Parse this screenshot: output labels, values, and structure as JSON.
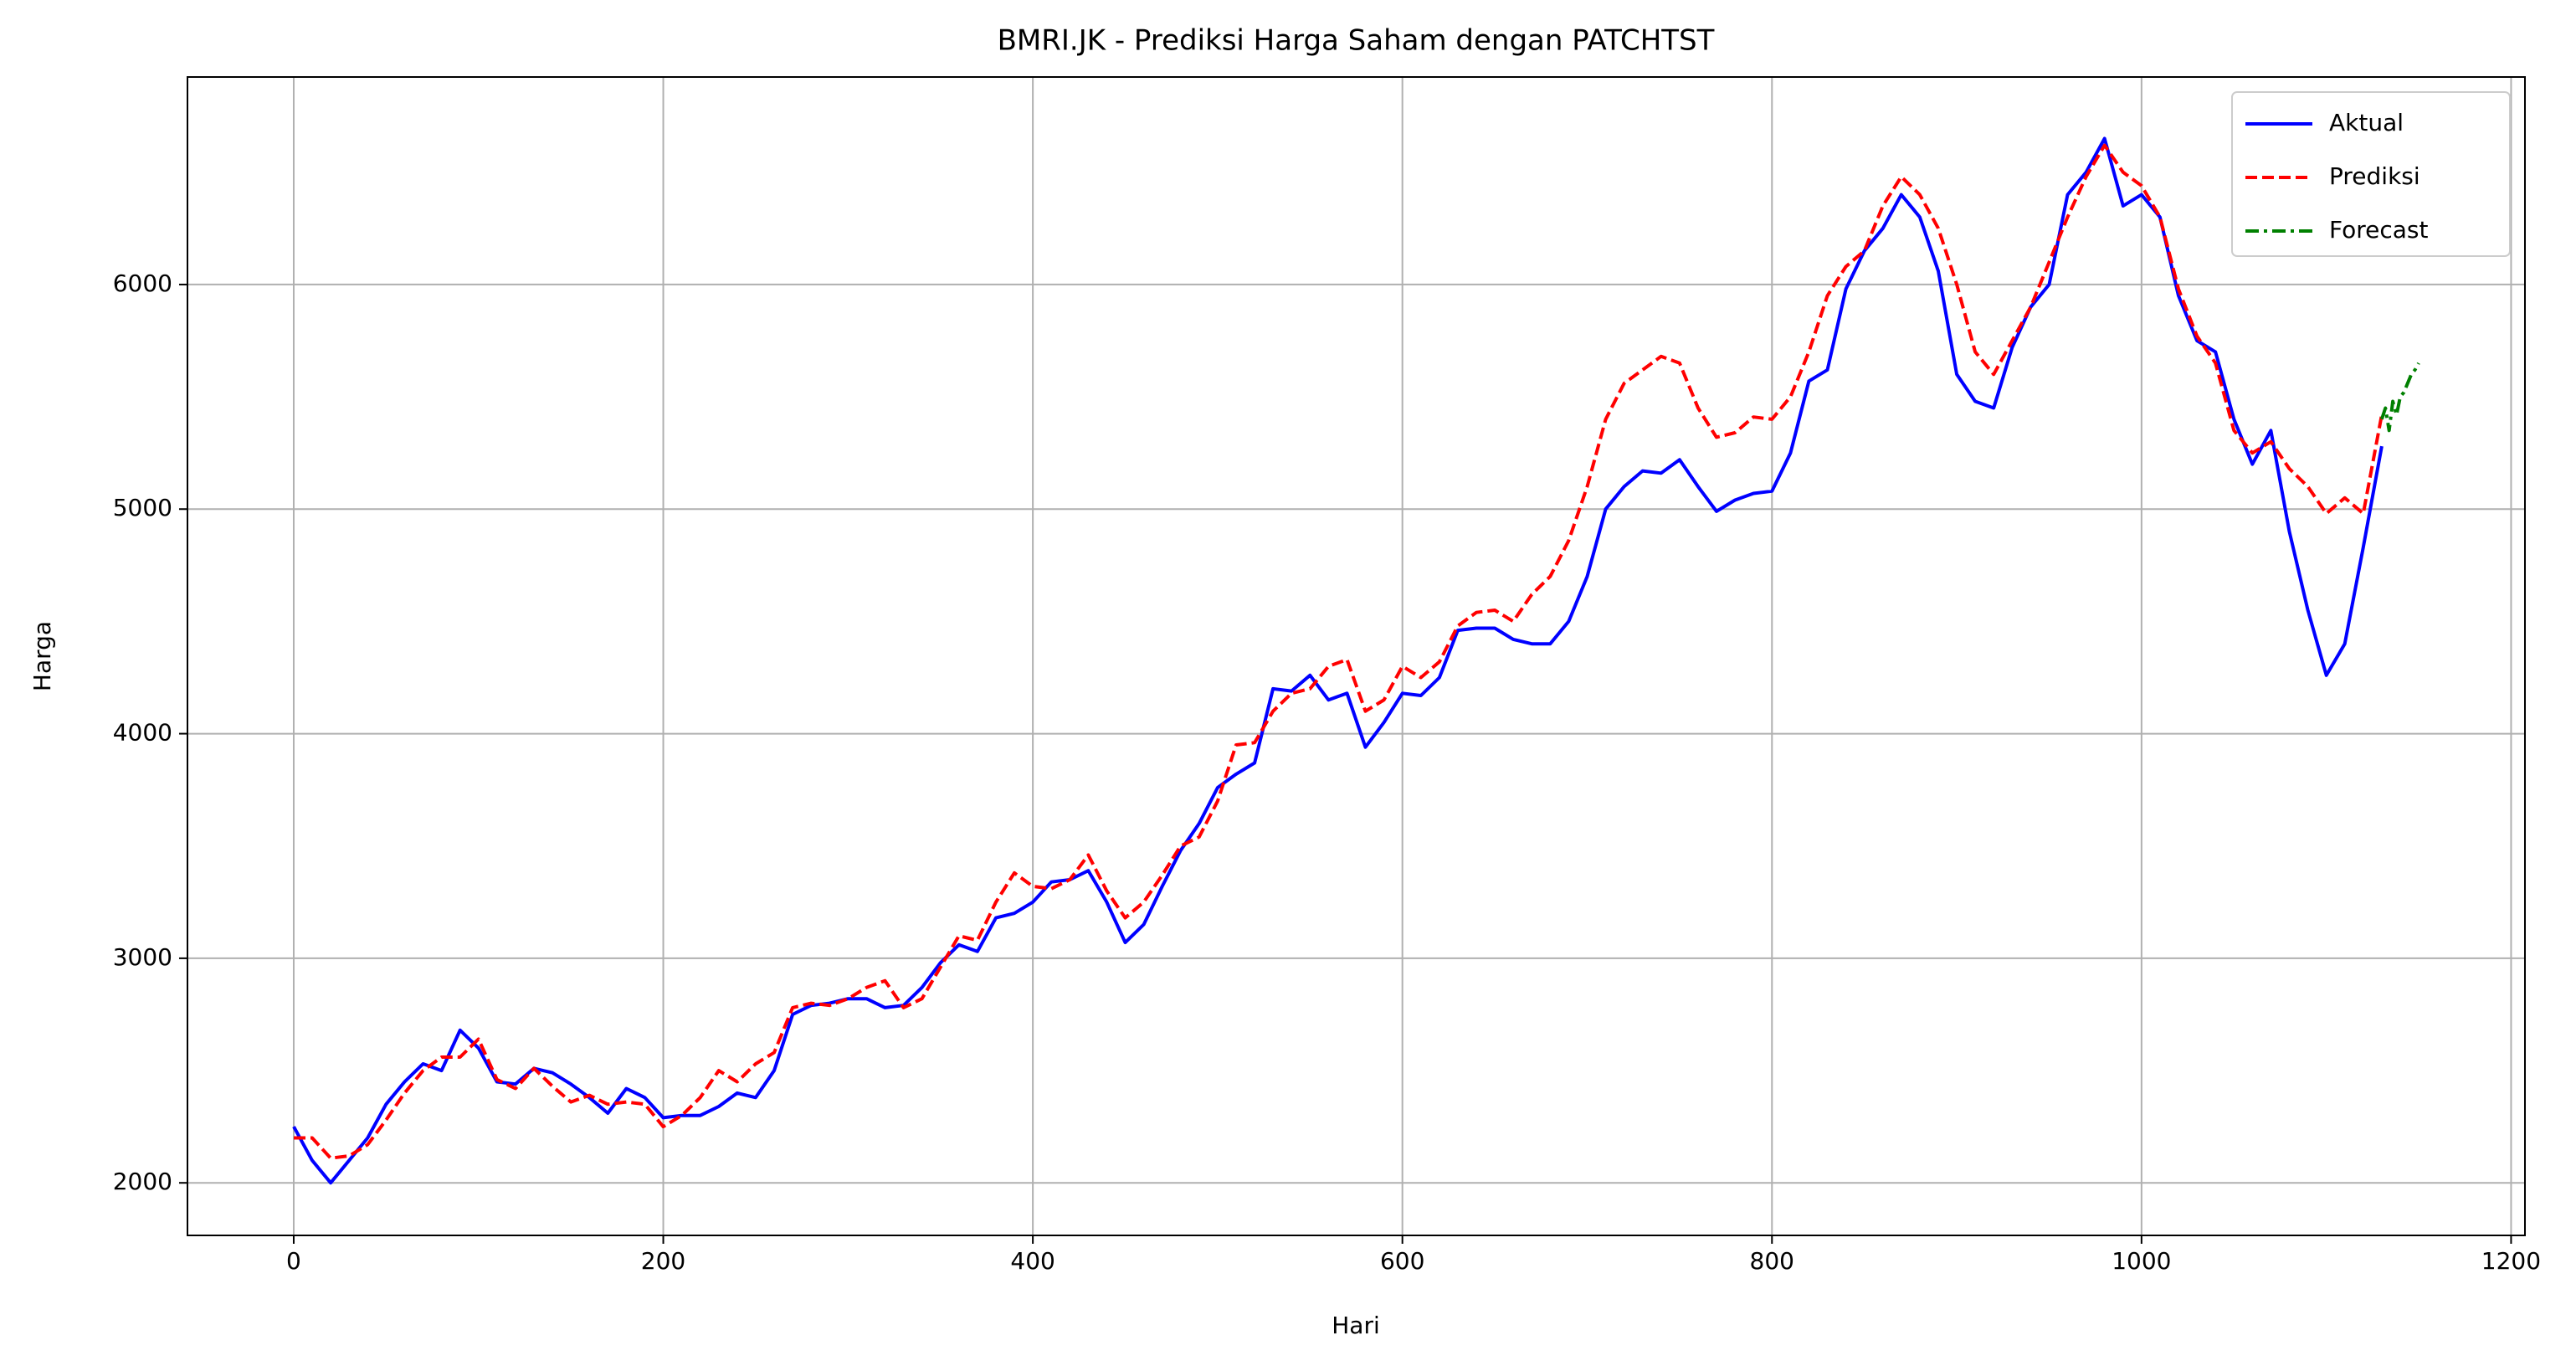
{
  "chart_data": {
    "type": "line",
    "title": "BMRI.JK - Prediksi Harga Saham dengan PATCHTST",
    "x_label": "Hari",
    "y_label": "Harga",
    "xlim": [
      -57.5,
      1207.5
    ],
    "xticks": [
      0,
      200,
      400,
      600,
      800,
      1000,
      1200
    ],
    "ylim": [
      1766,
      6924
    ],
    "yticks": [
      2000,
      3000,
      4000,
      5000,
      6000
    ],
    "grid": true,
    "legend": "upper right",
    "series": [
      {
        "name": "Aktual",
        "color": "#0000ff",
        "linestyle": "solid",
        "x": [
          0,
          10,
          20,
          30,
          40,
          50,
          60,
          70,
          80,
          90,
          100,
          110,
          120,
          130,
          140,
          150,
          160,
          170,
          180,
          190,
          200,
          210,
          220,
          230,
          240,
          250,
          260,
          270,
          280,
          290,
          300,
          310,
          320,
          330,
          340,
          350,
          360,
          370,
          380,
          390,
          400,
          410,
          420,
          430,
          440,
          450,
          460,
          470,
          480,
          490,
          500,
          510,
          520,
          530,
          540,
          550,
          560,
          570,
          580,
          590,
          600,
          610,
          620,
          630,
          640,
          650,
          660,
          670,
          680,
          690,
          700,
          710,
          720,
          730,
          740,
          750,
          760,
          770,
          780,
          790,
          800,
          810,
          820,
          830,
          840,
          850,
          860,
          870,
          880,
          890,
          900,
          910,
          920,
          930,
          940,
          950,
          960,
          970,
          980,
          990,
          1000,
          1010,
          1020,
          1030,
          1040,
          1050,
          1060,
          1070,
          1080,
          1090,
          1100,
          1110,
          1120,
          1130
        ],
        "values": [
          2250,
          2100,
          2000,
          2100,
          2200,
          2350,
          2450,
          2530,
          2500,
          2680,
          2600,
          2450,
          2440,
          2510,
          2490,
          2440,
          2380,
          2310,
          2420,
          2380,
          2290,
          2300,
          2300,
          2340,
          2400,
          2380,
          2500,
          2750,
          2790,
          2800,
          2820,
          2820,
          2780,
          2790,
          2870,
          2980,
          3060,
          3030,
          3180,
          3200,
          3250,
          3340,
          3350,
          3390,
          3250,
          3070,
          3150,
          3320,
          3480,
          3600,
          3760,
          3820,
          3870,
          4200,
          4190,
          4260,
          4150,
          4180,
          3940,
          4050,
          4180,
          4170,
          4250,
          4460,
          4470,
          4470,
          4420,
          4400,
          4400,
          4500,
          4700,
          5000,
          5100,
          5170,
          5160,
          5220,
          5100,
          4990,
          5040,
          5070,
          5080,
          5250,
          5570,
          5620,
          5980,
          6150,
          6250,
          6400,
          6300,
          6060,
          5600,
          5480,
          5450,
          5720,
          5900,
          6000,
          6400,
          6500,
          6650,
          6350,
          6400,
          6300,
          5950,
          5750,
          5700,
          5400,
          5200,
          5350,
          4900,
          4550,
          4260,
          4400,
          4830,
          5280
        ]
      },
      {
        "name": "Prediksi",
        "color": "#ff0000",
        "linestyle": "dashed",
        "x": [
          0,
          10,
          20,
          30,
          40,
          50,
          60,
          70,
          80,
          90,
          100,
          110,
          120,
          130,
          140,
          150,
          160,
          170,
          180,
          190,
          200,
          210,
          220,
          230,
          240,
          250,
          260,
          270,
          280,
          290,
          300,
          310,
          320,
          330,
          340,
          350,
          360,
          370,
          380,
          390,
          400,
          410,
          420,
          430,
          440,
          450,
          460,
          470,
          480,
          490,
          500,
          510,
          520,
          530,
          540,
          550,
          560,
          570,
          580,
          590,
          600,
          610,
          620,
          630,
          640,
          650,
          660,
          670,
          680,
          690,
          700,
          710,
          720,
          730,
          740,
          750,
          760,
          770,
          780,
          790,
          800,
          810,
          820,
          830,
          840,
          850,
          860,
          870,
          880,
          890,
          900,
          910,
          920,
          930,
          940,
          950,
          960,
          970,
          980,
          990,
          1000,
          1010,
          1020,
          1030,
          1040,
          1050,
          1060,
          1070,
          1080,
          1090,
          1100,
          1110,
          1120,
          1130
        ],
        "values": [
          2200,
          2200,
          2110,
          2120,
          2170,
          2280,
          2400,
          2500,
          2560,
          2560,
          2640,
          2460,
          2420,
          2510,
          2430,
          2360,
          2390,
          2350,
          2360,
          2350,
          2250,
          2300,
          2380,
          2500,
          2450,
          2530,
          2580,
          2780,
          2800,
          2790,
          2820,
          2870,
          2900,
          2780,
          2820,
          2960,
          3100,
          3080,
          3250,
          3380,
          3320,
          3310,
          3350,
          3460,
          3300,
          3180,
          3250,
          3370,
          3500,
          3540,
          3700,
          3950,
          3960,
          4100,
          4180,
          4200,
          4300,
          4330,
          4100,
          4150,
          4300,
          4250,
          4320,
          4480,
          4540,
          4550,
          4500,
          4620,
          4700,
          4860,
          5100,
          5400,
          5560,
          5620,
          5680,
          5650,
          5450,
          5320,
          5340,
          5410,
          5400,
          5500,
          5700,
          5950,
          6080,
          6150,
          6350,
          6480,
          6400,
          6250,
          6000,
          5700,
          5600,
          5750,
          5900,
          6100,
          6300,
          6480,
          6620,
          6500,
          6440,
          6300,
          5980,
          5770,
          5650,
          5350,
          5250,
          5300,
          5180,
          5100,
          4980,
          5050,
          4980,
          5420
        ]
      },
      {
        "name": "Forecast",
        "color": "#008000",
        "linestyle": "dashdot",
        "x": [
          1130,
          1132,
          1134,
          1136,
          1138,
          1140,
          1142,
          1144,
          1146,
          1148,
          1150
        ],
        "values": [
          5400,
          5450,
          5350,
          5480,
          5420,
          5500,
          5520,
          5560,
          5600,
          5620,
          5650
        ]
      }
    ]
  }
}
